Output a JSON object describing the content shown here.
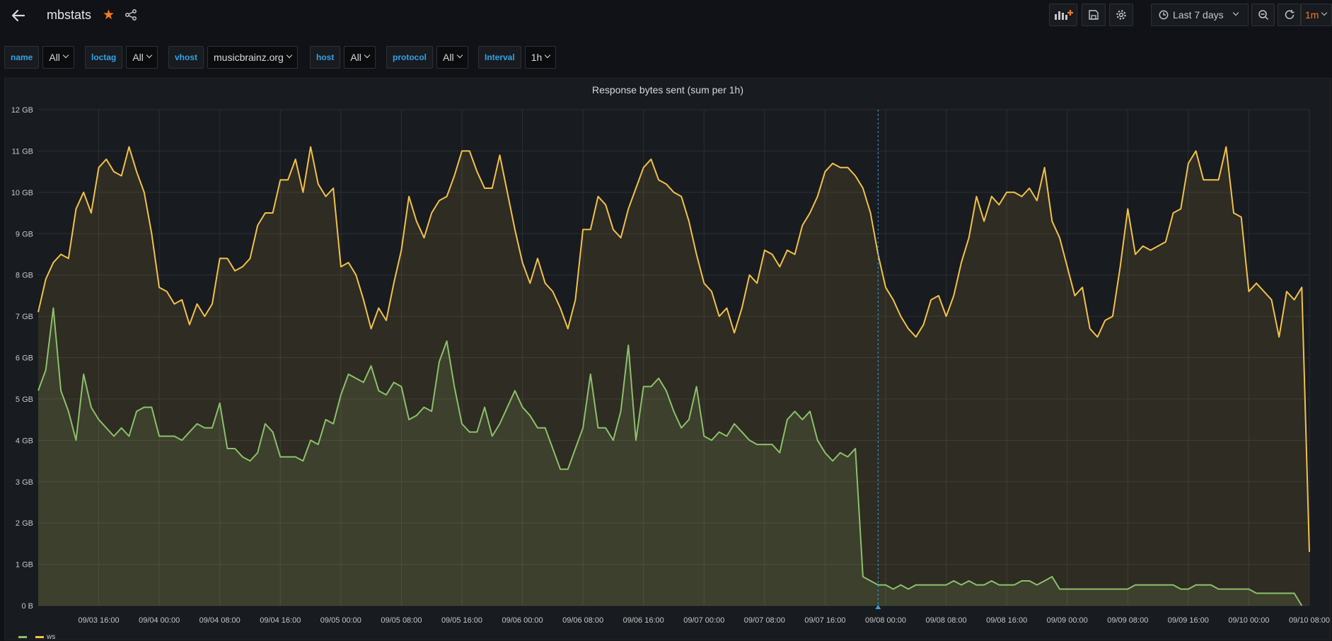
{
  "header": {
    "title": "mbstats"
  },
  "toolbar": {
    "time_range": "Last 7 days",
    "refresh": "1m"
  },
  "variables": [
    {
      "label": "name",
      "value": "All"
    },
    {
      "label": "loctag",
      "value": "All"
    },
    {
      "label": "vhost",
      "value": "musicbrainz.org"
    },
    {
      "label": "host",
      "value": "All"
    },
    {
      "label": "protocol",
      "value": "All"
    },
    {
      "label": "Interval",
      "value": "1h"
    }
  ],
  "panel": {
    "title": "Response bytes sent (sum per 1h)"
  },
  "colors": {
    "ws": "#f2c14a",
    "other": "#8cc06a",
    "hover_line": "#33a2e5",
    "accent": "#f57c1f"
  },
  "chart_data": {
    "type": "area",
    "title": "Response bytes sent (sum per 1h)",
    "ylim": [
      0,
      12
    ],
    "y_unit": "GB",
    "y_ticks": [
      "0 B",
      "1 GB",
      "2 GB",
      "3 GB",
      "4 GB",
      "5 GB",
      "6 GB",
      "7 GB",
      "8 GB",
      "9 GB",
      "10 GB",
      "11 GB",
      "12 GB"
    ],
    "x_ticks": [
      "09/03 16:00",
      "09/04 00:00",
      "09/04 08:00",
      "09/04 16:00",
      "09/05 00:00",
      "09/05 08:00",
      "09/05 16:00",
      "09/06 00:00",
      "09/06 08:00",
      "09/06 16:00",
      "09/07 00:00",
      "09/07 08:00",
      "09/07 16:00",
      "09/08 00:00",
      "09/08 08:00",
      "09/08 16:00",
      "09/09 00:00",
      "09/09 08:00",
      "09/09 16:00",
      "09/10 00:00",
      "09/10 08:00"
    ],
    "x_start": "09/03 08:00",
    "x_step_hours": 1,
    "x_hover": "09/07 23:00",
    "grid": true,
    "legend_position": "bottom-left",
    "series": [
      {
        "name": "ws",
        "color": "#f2c14a",
        "values": [
          7.1,
          7.9,
          8.3,
          8.5,
          8.4,
          9.6,
          10.0,
          9.5,
          10.6,
          10.8,
          10.5,
          10.4,
          11.1,
          10.5,
          10.0,
          9.0,
          7.7,
          7.6,
          7.3,
          7.4,
          6.8,
          7.3,
          7.0,
          7.3,
          8.4,
          8.4,
          8.1,
          8.2,
          8.4,
          9.2,
          9.5,
          9.5,
          10.3,
          10.3,
          10.8,
          10.0,
          11.1,
          10.2,
          9.9,
          10.1,
          8.2,
          8.3,
          8.0,
          7.4,
          6.7,
          7.2,
          6.9,
          7.8,
          8.6,
          9.9,
          9.3,
          8.9,
          9.5,
          9.8,
          9.9,
          10.4,
          11.0,
          11.0,
          10.5,
          10.1,
          10.1,
          10.9,
          10.0,
          9.1,
          8.3,
          7.8,
          8.4,
          7.8,
          7.6,
          7.2,
          6.7,
          7.4,
          9.1,
          9.1,
          9.9,
          9.7,
          9.1,
          8.9,
          9.6,
          10.1,
          10.6,
          10.8,
          10.3,
          10.2,
          10.0,
          9.9,
          9.3,
          8.5,
          7.8,
          7.6,
          7.0,
          7.2,
          6.6,
          7.2,
          8.0,
          7.8,
          8.6,
          8.5,
          8.2,
          8.6,
          8.5,
          9.2,
          9.5,
          9.9,
          10.5,
          10.7,
          10.6,
          10.6,
          10.4,
          10.1,
          9.5,
          8.5,
          7.7,
          7.4,
          7.0,
          6.7,
          6.5,
          6.8,
          7.4,
          7.5,
          7.0,
          7.5,
          8.3,
          8.9,
          9.9,
          9.3,
          9.9,
          9.7,
          10.0,
          10.0,
          9.9,
          10.1,
          9.8,
          10.6,
          9.3,
          8.9,
          8.2,
          7.5,
          7.7,
          6.7,
          6.5,
          6.9,
          7.0,
          8.2,
          9.6,
          8.5,
          8.7,
          8.6,
          8.7,
          8.8,
          9.5,
          9.6,
          10.7,
          11.0,
          10.3,
          10.3,
          10.3,
          11.1,
          9.5,
          9.4,
          7.6,
          7.8,
          7.6,
          7.4,
          6.5,
          7.6,
          7.4,
          7.7,
          1.3
        ]
      },
      {
        "name": "",
        "color": "#8cc06a",
        "values": [
          5.2,
          5.7,
          7.2,
          5.2,
          4.7,
          4.0,
          5.6,
          4.8,
          4.5,
          4.3,
          4.1,
          4.3,
          4.1,
          4.7,
          4.8,
          4.8,
          4.1,
          4.1,
          4.1,
          4.0,
          4.2,
          4.4,
          4.3,
          4.3,
          4.9,
          3.8,
          3.8,
          3.6,
          3.5,
          3.7,
          4.4,
          4.2,
          3.6,
          3.6,
          3.6,
          3.5,
          4.0,
          3.9,
          4.5,
          4.4,
          5.1,
          5.6,
          5.5,
          5.4,
          5.8,
          5.2,
          5.1,
          5.4,
          5.3,
          4.5,
          4.6,
          4.8,
          4.7,
          5.9,
          6.4,
          5.3,
          4.4,
          4.2,
          4.2,
          4.8,
          4.1,
          4.4,
          4.8,
          5.2,
          4.8,
          4.6,
          4.3,
          4.3,
          3.8,
          3.3,
          3.3,
          3.8,
          4.3,
          5.6,
          4.3,
          4.3,
          4.0,
          4.7,
          6.3,
          4.0,
          5.3,
          5.3,
          5.5,
          5.2,
          4.7,
          4.3,
          4.5,
          5.3,
          4.1,
          4.0,
          4.2,
          4.1,
          4.4,
          4.2,
          4.0,
          3.9,
          3.9,
          3.9,
          3.7,
          4.5,
          4.7,
          4.5,
          4.7,
          4.0,
          3.7,
          3.5,
          3.7,
          3.6,
          3.8,
          0.7,
          0.6,
          0.5,
          0.5,
          0.4,
          0.5,
          0.4,
          0.5,
          0.5,
          0.5,
          0.5,
          0.5,
          0.6,
          0.5,
          0.6,
          0.5,
          0.5,
          0.6,
          0.5,
          0.5,
          0.5,
          0.6,
          0.6,
          0.5,
          0.6,
          0.7,
          0.4,
          0.4,
          0.4,
          0.4,
          0.4,
          0.4,
          0.4,
          0.4,
          0.4,
          0.4,
          0.5,
          0.5,
          0.5,
          0.5,
          0.5,
          0.5,
          0.4,
          0.4,
          0.5,
          0.5,
          0.5,
          0.4,
          0.4,
          0.4,
          0.4,
          0.4,
          0.3,
          0.3,
          0.3,
          0.3,
          0.3,
          0.3,
          0.0
        ]
      }
    ]
  }
}
